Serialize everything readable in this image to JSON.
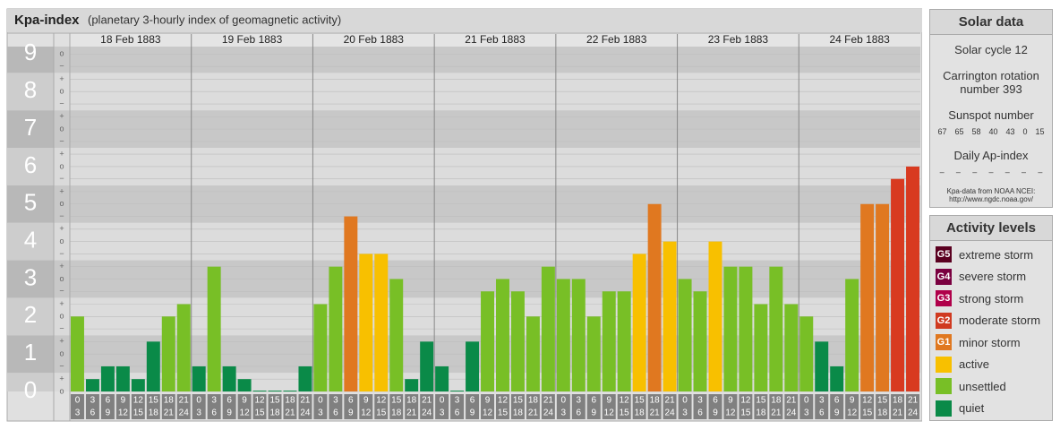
{
  "chart_data": {
    "type": "bar",
    "title": "Kpa-index",
    "subtitle": "(planetary 3-hourly index of geomagnetic activity)",
    "ylim": [
      0,
      9.2
    ],
    "yticks": [
      0,
      1,
      2,
      3,
      4,
      5,
      6,
      7,
      8,
      9
    ],
    "ysubticks": [
      {
        "value": 9,
        "label": "o"
      },
      {
        "value": 8.67,
        "label": "−"
      },
      {
        "value": 8.33,
        "label": "+"
      },
      {
        "value": 8,
        "label": "o"
      },
      {
        "value": 7.67,
        "label": "−"
      },
      {
        "value": 7.33,
        "label": "+"
      },
      {
        "value": 7,
        "label": "o"
      },
      {
        "value": 6.67,
        "label": "−"
      },
      {
        "value": 6.33,
        "label": "+"
      },
      {
        "value": 6,
        "label": "o"
      },
      {
        "value": 5.67,
        "label": "−"
      },
      {
        "value": 5.33,
        "label": "+"
      },
      {
        "value": 5,
        "label": "o"
      },
      {
        "value": 4.67,
        "label": "−"
      },
      {
        "value": 4.33,
        "label": "+"
      },
      {
        "value": 4,
        "label": "o"
      },
      {
        "value": 3.67,
        "label": "−"
      },
      {
        "value": 3.33,
        "label": "+"
      },
      {
        "value": 3,
        "label": "o"
      },
      {
        "value": 2.67,
        "label": "−"
      },
      {
        "value": 2.33,
        "label": "+"
      },
      {
        "value": 2,
        "label": "o"
      },
      {
        "value": 1.67,
        "label": "−"
      },
      {
        "value": 1.33,
        "label": "+"
      },
      {
        "value": 1,
        "label": "o"
      },
      {
        "value": 0.67,
        "label": "−"
      },
      {
        "value": 0.33,
        "label": "+"
      },
      {
        "value": 0,
        "label": "o"
      }
    ],
    "intervals": [
      [
        "0",
        "3"
      ],
      [
        "3",
        "6"
      ],
      [
        "6",
        "9"
      ],
      [
        "9",
        "12"
      ],
      [
        "12",
        "15"
      ],
      [
        "15",
        "18"
      ],
      [
        "18",
        "21"
      ],
      [
        "21",
        "24"
      ]
    ],
    "series": [
      {
        "name": "18 Feb 1883",
        "values": [
          2,
          0.33,
          0.67,
          0.67,
          0.33,
          1.33,
          2,
          2.33
        ],
        "colors": [
          "#78bf26",
          "#0a8a48",
          "#0a8a48",
          "#0a8a48",
          "#0a8a48",
          "#0a8a48",
          "#78bf26",
          "#78bf26"
        ]
      },
      {
        "name": "19 Feb 1883",
        "values": [
          0.67,
          3.33,
          0.67,
          0.33,
          0,
          0,
          0,
          0.67
        ],
        "colors": [
          "#0a8a48",
          "#78bf26",
          "#0a8a48",
          "#0a8a48",
          "#0a8a48",
          "#0a8a48",
          "#0a8a48",
          "#0a8a48"
        ]
      },
      {
        "name": "20 Feb 1883",
        "values": [
          2.33,
          3.33,
          4.67,
          3.67,
          3.67,
          3,
          0.33,
          1.33
        ],
        "colors": [
          "#78bf26",
          "#78bf26",
          "#e07820",
          "#f8c000",
          "#f8c000",
          "#78bf26",
          "#0a8a48",
          "#0a8a48"
        ]
      },
      {
        "name": "21 Feb 1883",
        "values": [
          0.67,
          0,
          1.33,
          2.67,
          3,
          2.67,
          2,
          3.33
        ],
        "colors": [
          "#0a8a48",
          "#0a8a48",
          "#0a8a48",
          "#78bf26",
          "#78bf26",
          "#78bf26",
          "#78bf26",
          "#78bf26"
        ]
      },
      {
        "name": "22 Feb 1883",
        "values": [
          3,
          3,
          2,
          2.67,
          2.67,
          3.67,
          5,
          4
        ],
        "colors": [
          "#78bf26",
          "#78bf26",
          "#78bf26",
          "#78bf26",
          "#78bf26",
          "#f8c000",
          "#e07820",
          "#f8c000"
        ]
      },
      {
        "name": "23 Feb 1883",
        "values": [
          3,
          2.67,
          4,
          3.33,
          3.33,
          2.33,
          3.33,
          2.33
        ],
        "colors": [
          "#78bf26",
          "#78bf26",
          "#f8c000",
          "#78bf26",
          "#78bf26",
          "#78bf26",
          "#78bf26",
          "#78bf26"
        ]
      },
      {
        "name": "24 Feb 1883",
        "values": [
          2,
          1.33,
          0.67,
          3,
          5,
          5,
          5.67,
          6
        ],
        "colors": [
          "#78bf26",
          "#0a8a48",
          "#0a8a48",
          "#78bf26",
          "#e07820",
          "#e07820",
          "#d83a20",
          "#d83a20"
        ]
      }
    ]
  },
  "solar": {
    "title": "Solar data",
    "cycle": "Solar cycle 12",
    "carrington": "Carrington rotation number 393",
    "sunspot_title": "Sunspot number",
    "sunspots": [
      67,
      65,
      58,
      40,
      43,
      0,
      15
    ],
    "ap_title": "Daily Ap-index",
    "ap": [
      "–",
      "–",
      "–",
      "–",
      "–",
      "–",
      "–"
    ],
    "source": "Kpa-data from NOAA NCEI: http://www.ngdc.noaa.gov/"
  },
  "legend": {
    "title": "Activity levels",
    "items": [
      {
        "code": "G5",
        "label": "extreme storm",
        "color": "#5a0020"
      },
      {
        "code": "G4",
        "label": "severe storm",
        "color": "#7a0040"
      },
      {
        "code": "G3",
        "label": "strong storm",
        "color": "#b0004a"
      },
      {
        "code": "G2",
        "label": "moderate storm",
        "color": "#d03a20"
      },
      {
        "code": "G1",
        "label": "minor storm",
        "color": "#e07820"
      },
      {
        "code": "",
        "label": "active",
        "color": "#f8c000"
      },
      {
        "code": "",
        "label": "unsettled",
        "color": "#78bf26"
      },
      {
        "code": "",
        "label": "quiet",
        "color": "#0a8a48"
      }
    ]
  }
}
